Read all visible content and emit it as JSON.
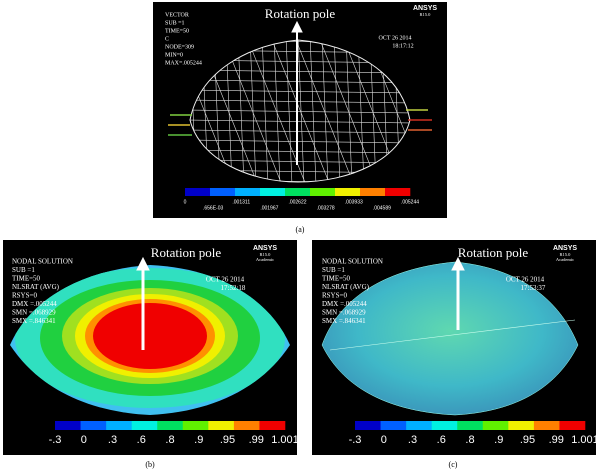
{
  "panels": [
    {
      "info": [
        "VECTOR",
        "SUB =1",
        "TIME=50",
        "C",
        "NODE=309",
        "MIN=0",
        "MAX=.005244"
      ],
      "logo": "ANSYS",
      "version": "R15.0",
      "date": "OCT 26 2014",
      "time": "18:17:12",
      "pole_label": "Rotation pole",
      "legend": [
        "0",
        ".656E-03",
        ".001311",
        ".001967",
        ".002622",
        ".003278",
        ".003933",
        ".004589",
        ".005244"
      ],
      "caption": "(a)"
    },
    {
      "info": [
        "NODAL SOLUTION",
        "SUB =1",
        "TIME=50",
        "NLSRAT (AVG)",
        "RSYS=0",
        "DMX =.005244",
        "SMN =.068929",
        "SMX =.846341"
      ],
      "logo": "ANSYS",
      "version": "R15.0",
      "edition": "Academic",
      "date": "OCT 26 2014",
      "time": "17:52:18",
      "pole_label": "Rotation pole",
      "legend": [
        "-.3",
        "0",
        ".3",
        ".6",
        ".8",
        ".9",
        ".95",
        ".99",
        "1.001"
      ],
      "caption": "(b)"
    },
    {
      "info": [
        "NODAL SOLUTION",
        "SUB =1",
        "TIME=50",
        "NLSRAT (AVG)",
        "RSYS=0",
        "DMX =.005244",
        "SMN =.068929",
        "SMX =.846341"
      ],
      "logo": "ANSYS",
      "version": "R15.0",
      "edition": "Academic",
      "date": "OCT 26 2014",
      "time": "17:53:37",
      "pole_label": "Rotation pole",
      "legend": [
        "-.3",
        "0",
        ".3",
        ".6",
        ".8",
        ".9",
        ".95",
        ".99",
        "1.001"
      ],
      "caption": "(c)"
    }
  ]
}
